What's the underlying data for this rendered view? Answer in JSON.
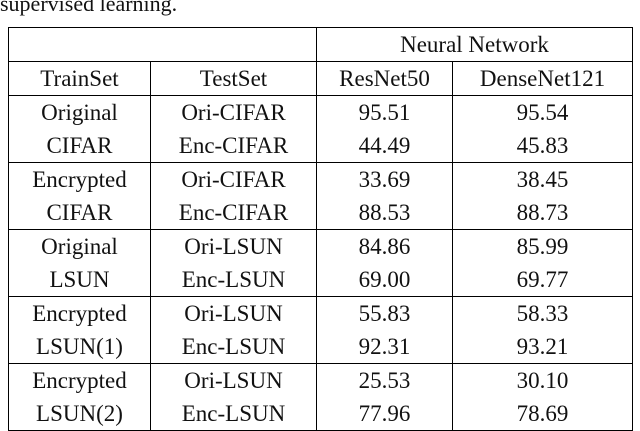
{
  "caption": "supervised learning.",
  "table": {
    "super_header": "Neural Network",
    "columns": [
      "TrainSet",
      "TestSet",
      "ResNet50",
      "DenseNet121"
    ],
    "rows": [
      [
        "Original",
        "Ori-CIFAR",
        "95.51",
        "95.54"
      ],
      [
        "CIFAR",
        "Enc-CIFAR",
        "44.49",
        "45.83"
      ],
      [
        "Encrypted",
        "Ori-CIFAR",
        "33.69",
        "38.45"
      ],
      [
        "CIFAR",
        "Enc-CIFAR",
        "88.53",
        "88.73"
      ],
      [
        "Original",
        "Ori-LSUN",
        "84.86",
        "85.99"
      ],
      [
        "LSUN",
        "Enc-LSUN",
        "69.00",
        "69.77"
      ],
      [
        "Encrypted",
        "Ori-LSUN",
        "55.83",
        "58.33"
      ],
      [
        "LSUN(1)",
        "Enc-LSUN",
        "92.31",
        "93.21"
      ],
      [
        "Encrypted",
        "Ori-LSUN",
        "25.53",
        "30.10"
      ],
      [
        "LSUN(2)",
        "Enc-LSUN",
        "77.96",
        "78.69"
      ]
    ]
  }
}
